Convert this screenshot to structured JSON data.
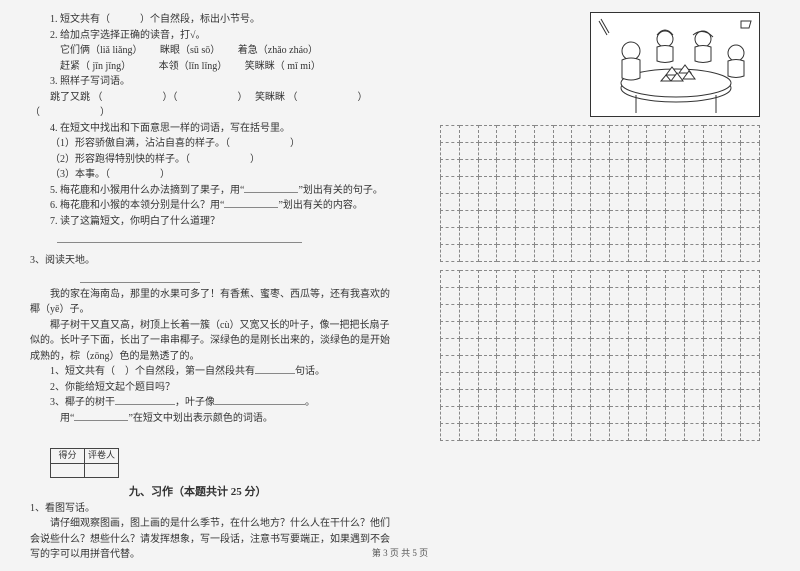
{
  "q1": {
    "l1": "1. 短文共有（　　　）个自然段，标出小节号。",
    "l2": "2. 给加点字选择正确的读音，打√。",
    "l3_a": "它们俩（liǎ  liǎng）",
    "l3_b": "眯眼（sū  sō）",
    "l3_c": "着急（zhǎo  zháo）",
    "l4_a": "赶紧（ jīn  jǐng）",
    "l4_b": "本领（lǐn  lǐng）",
    "l4_c": "笑眯眯（ mǐ  mi）",
    "l5": "3. 照样子写词语。",
    "l6_a": "跳了又跳 （　　　　　　）（　　　　　　）",
    "l6_b": "笑眯眯 （　　　　　　）（　　　　　　）",
    "l7": "4. 在短文中找出和下面意思一样的词语，写在括号里。",
    "l8": "（1）形容骄傲自满，沾沾自喜的样子。（　　　　　　）",
    "l9": "（2）形容跑得特别快的样子。（　　　　　　）",
    "l10": "（3）本事。（　　　　　）",
    "l11_pre": "5. 梅花鹿和小猴用什么办法摘到了果子，用“",
    "l11_post": "”划出有关的句子。",
    "l12_pre": "6. 梅花鹿和小猴的本领分别是什么？用“",
    "l12_post": "”划出有关的内容。",
    "l13": "7. 读了这篇短文，你明白了什么道理？"
  },
  "q3": {
    "title": "3、阅读天地。",
    "p1": "我的家在海南岛，那里的水果可多了！有香蕉、蜜枣、西瓜等，还有我喜欢的椰（yē）子。",
    "p2": "椰子树干又直又高，树顶上长着一簇（cù）又宽又长的叶子，像一把把长扇子似的。长叶子下面，长出了一串串椰子。深绿色的是刚长出来的，淡绿色的是开始成熟的，棕（zōng）色的是熟透了的。",
    "s1_a": "1、短文共有（　）个自然段，第一自然段共有",
    "s1_b": "句话。",
    "s2": "2、你能给短文起个题目吗？",
    "s3_a": "3、椰子的树干",
    "s3_b": "，叶子像",
    "s3_c": "。",
    "s4_a": "用“",
    "s4_b": "”在短文中划出表示颜色的词语。"
  },
  "score": {
    "c1": "得分",
    "c2": "评卷人"
  },
  "section9": "九、习作（本题共计 25 分）",
  "writing": {
    "l1": "1、看图写话。",
    "l2": "请仔细观察图画，图上画的是什么季节，在什么地方？什么人在干什么？他们会说些什么？想些什么？请发挥想象，写一段话，注意书写要端正，如果遇到不会写的字可以用拼音代替。"
  },
  "footer": "第 3 页  共 5 页",
  "grid": {
    "cols": 17,
    "rows_block1": 8,
    "rows_block2": 10
  }
}
